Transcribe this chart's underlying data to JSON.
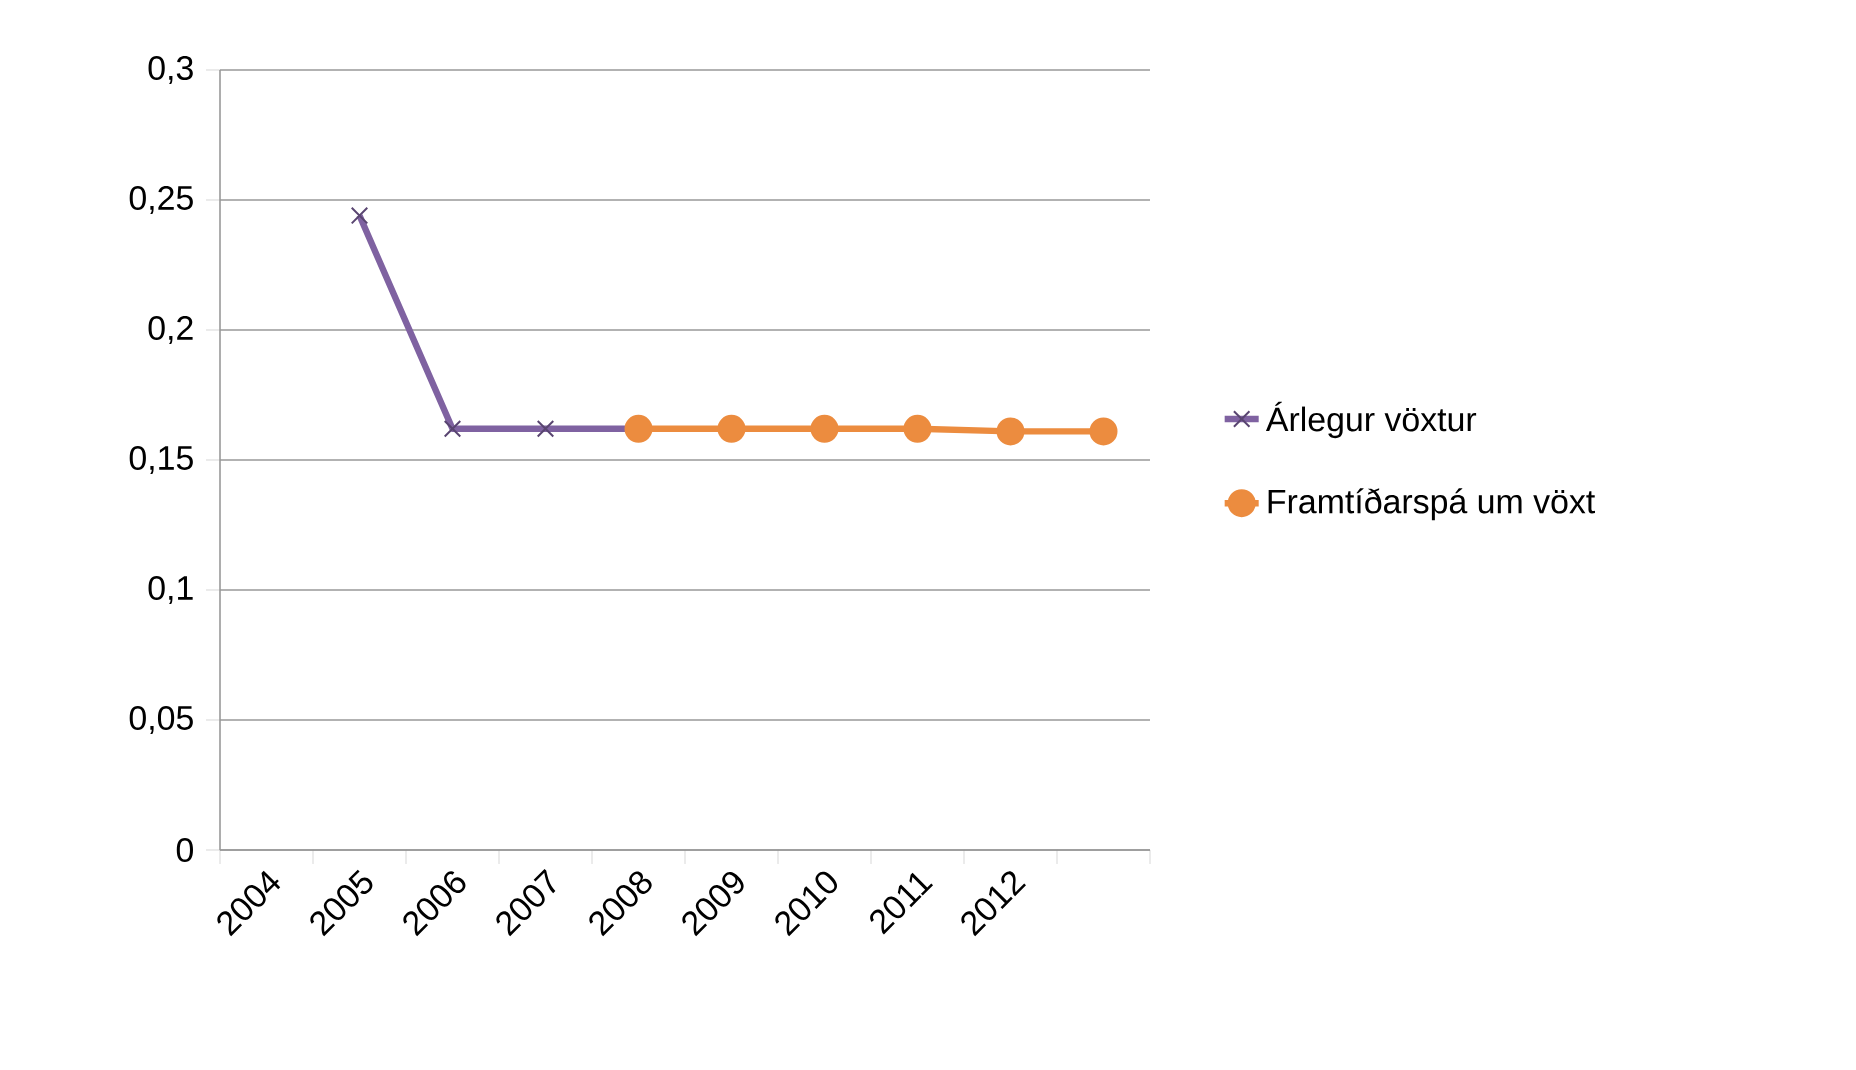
{
  "chart_data": {
    "type": "line",
    "categories": [
      "2004",
      "2005",
      "2006",
      "2007",
      "2008",
      "2009",
      "2010",
      "2011",
      "2012",
      null
    ],
    "series": [
      {
        "name": "Árlegur vöxtur",
        "color": "#7f62a1",
        "marker": "cross",
        "values": [
          null,
          0.244,
          0.162,
          0.162,
          0.162,
          null,
          null,
          null,
          null,
          null
        ]
      },
      {
        "name": "Framtíðarspá um vöxt",
        "color": "#ec8c3f",
        "marker": "circle",
        "values": [
          null,
          null,
          null,
          null,
          0.162,
          0.162,
          0.162,
          0.162,
          0.161,
          0.161
        ]
      }
    ],
    "ylim": [
      0,
      0.3
    ],
    "yticks": [
      0,
      {
        "value": 0.05,
        "label": "0,05"
      },
      {
        "value": 0.1,
        "label": "0,1"
      },
      {
        "value": 0.15,
        "label": "0,15"
      },
      {
        "value": 0.2,
        "label": "0,2"
      },
      {
        "value": 0.25,
        "label": "0,25"
      },
      {
        "value": 0.3,
        "label": "0,3"
      }
    ],
    "grid": "y",
    "legend": "right",
    "line_style": "solid"
  }
}
